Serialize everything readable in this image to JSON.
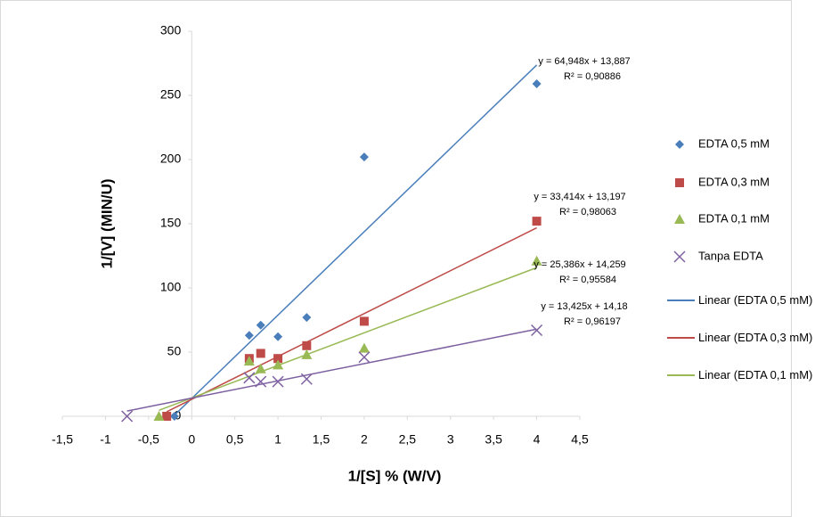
{
  "chart_data": {
    "type": "scatter",
    "x_label": "1/[S] % (W/V)",
    "y_label": "1/[V] (MIN/U)",
    "xlim": [
      -1.5,
      4.5
    ],
    "xticks": [
      {
        "value": -1.5,
        "label": "-1,5"
      },
      {
        "value": -1,
        "label": "-1"
      },
      {
        "value": -0.5,
        "label": "-0,5"
      },
      0,
      {
        "value": 0.5,
        "label": "0,5"
      },
      1,
      {
        "value": 1.5,
        "label": "1,5"
      },
      2,
      {
        "value": 2.5,
        "label": "2,5"
      },
      3,
      {
        "value": 3.5,
        "label": "3,5"
      },
      4,
      {
        "value": 4.5,
        "label": "4,5"
      }
    ],
    "ylim": [
      0,
      300
    ],
    "yticks": [
      0,
      50,
      100,
      150,
      200,
      250,
      300
    ],
    "series": [
      {
        "name": "EDTA 0,5 mM",
        "color": "#4a7ebb",
        "marker": "diamond",
        "x": [
          -0.2,
          0.667,
          0.8,
          1,
          1.333,
          2,
          4
        ],
        "values": [
          0,
          63,
          71,
          62,
          77,
          202,
          259
        ],
        "slope": 64.948,
        "intercept": 13.887,
        "equation": "y = 64,948x + 13,887",
        "r2": "R² = 0,90886",
        "linear_name": "Linear  (EDTA 0,5 mM)"
      },
      {
        "name": "EDTA 0,3 mM",
        "color": "#be4b48",
        "marker": "square",
        "x": [
          -0.29,
          0.667,
          0.8,
          1,
          1.333,
          2,
          4
        ],
        "values": [
          0,
          45,
          49,
          45,
          55,
          74,
          152
        ],
        "slope": 33.414,
        "intercept": 13.197,
        "equation": "y = 33,414x + 13,197",
        "r2": "R² = 0,98063",
        "linear_name": "Linear  (EDTA 0,3 mM)"
      },
      {
        "name": "EDTA 0,1 mM",
        "color": "#98b954",
        "marker": "triangle",
        "x": [
          -0.38,
          0.667,
          0.8,
          1,
          1.333,
          2,
          4
        ],
        "values": [
          0,
          43,
          37,
          40,
          48,
          53,
          121
        ],
        "slope": 25.386,
        "intercept": 14.259,
        "equation": "y = 25,386x + 14,259",
        "r2": "R² = 0,95584",
        "linear_name": "Linear  (EDTA 0,1 mM)"
      },
      {
        "name": "Tanpa EDTA",
        "color": "#7d60a0",
        "marker": "x",
        "x": [
          -0.75,
          0.667,
          0.8,
          1,
          1.333,
          2,
          4
        ],
        "values": [
          0,
          30,
          27,
          27,
          29,
          46,
          67
        ],
        "slope": 13.425,
        "intercept": 14.18,
        "equation": "y = 13,425x + 14,18",
        "r2": "R² = 0,96197"
      }
    ]
  }
}
